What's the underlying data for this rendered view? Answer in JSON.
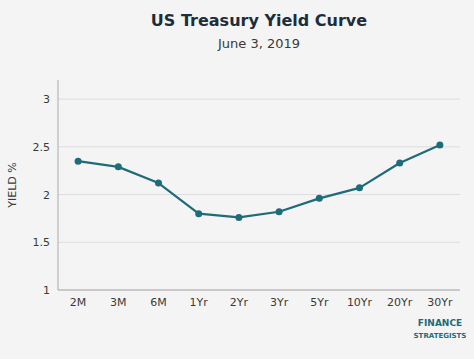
{
  "chart_data": {
    "type": "line",
    "title": "US Treasury Yield Curve",
    "subtitle": "June 3, 2019",
    "y_label": "YIELD %",
    "categories": [
      "2M",
      "3M",
      "6M",
      "1Yr",
      "2Yr",
      "3Yr",
      "5Yr",
      "10Yr",
      "20Yr",
      "30Yr"
    ],
    "values": [
      2.35,
      2.29,
      2.12,
      1.8,
      1.76,
      1.82,
      1.96,
      2.07,
      2.33,
      2.52
    ],
    "color": "#1e6b7a",
    "marker": "circle",
    "ylim": [
      1.0,
      3.2
    ],
    "yticks": [
      1,
      1.5,
      2,
      2.5,
      3
    ],
    "grid": true,
    "annotations": [
      "FINANCE",
      "STRATEGISTS"
    ]
  }
}
